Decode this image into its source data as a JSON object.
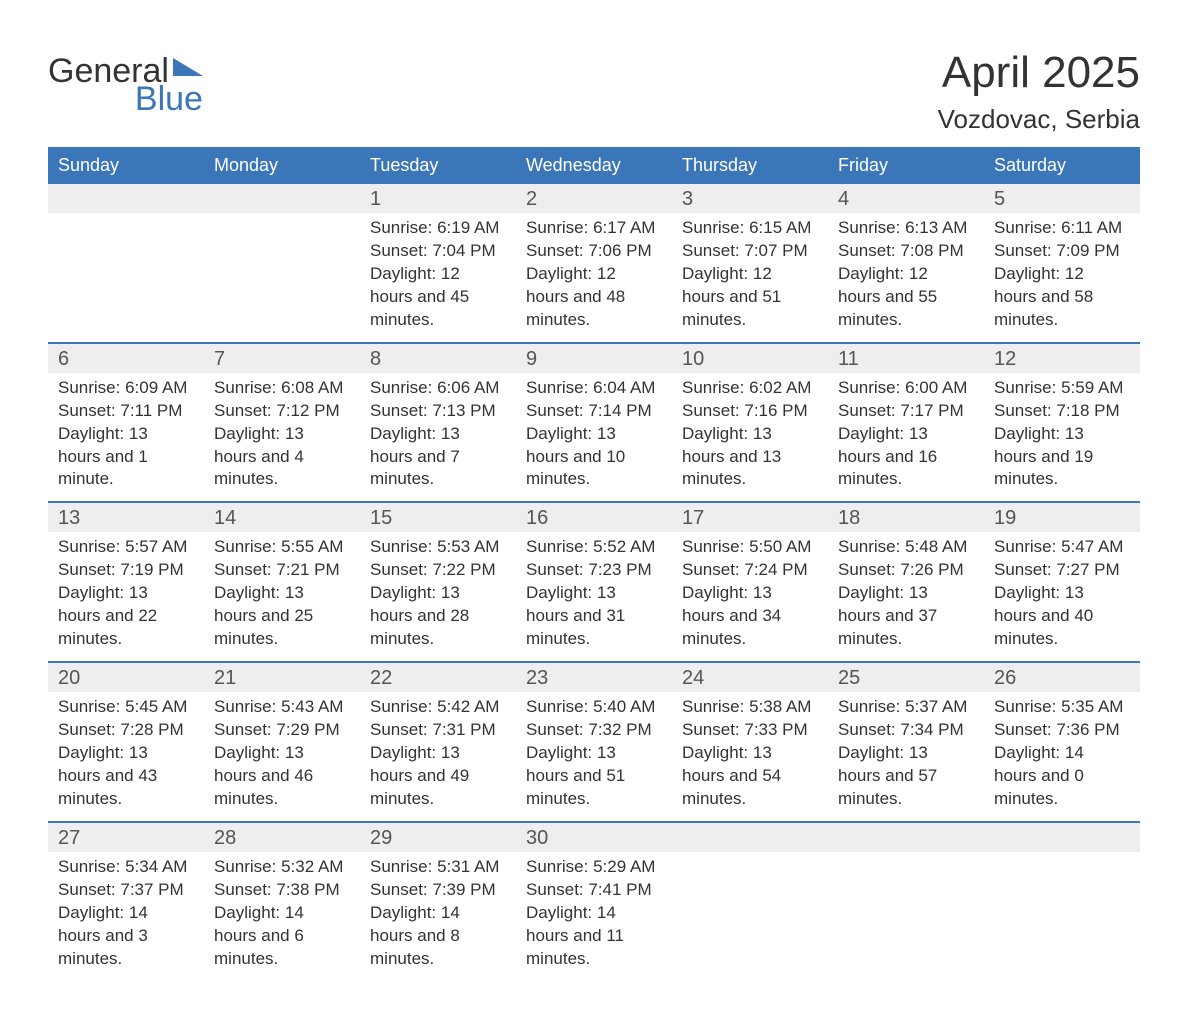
{
  "logo": {
    "word_top": "General",
    "word_bottom": "Blue",
    "text_color": "#333333",
    "accent_color": "#3a76b8",
    "triangle_color": "#3a76b8"
  },
  "title": {
    "month": "April 2025",
    "location": "Vozdovac, Serbia",
    "month_fontsize": 44,
    "location_fontsize": 26,
    "text_color": "#333333"
  },
  "calendar": {
    "header_bg": "#3a76b8",
    "header_text_color": "#ffffff",
    "daynum_bg": "#eeeeee",
    "week_divider_color": "#3a76b8",
    "body_bg": "#ffffff",
    "body_text_color": "#333333",
    "header_fontsize": 18,
    "daynum_fontsize": 20,
    "body_fontsize": 17,
    "day_names": [
      "Sunday",
      "Monday",
      "Tuesday",
      "Wednesday",
      "Thursday",
      "Friday",
      "Saturday"
    ],
    "weeks": [
      [
        null,
        null,
        {
          "n": "1",
          "sunrise": "Sunrise: 6:19 AM",
          "sunset": "Sunset: 7:04 PM",
          "daylight": "Daylight: 12 hours and 45 minutes."
        },
        {
          "n": "2",
          "sunrise": "Sunrise: 6:17 AM",
          "sunset": "Sunset: 7:06 PM",
          "daylight": "Daylight: 12 hours and 48 minutes."
        },
        {
          "n": "3",
          "sunrise": "Sunrise: 6:15 AM",
          "sunset": "Sunset: 7:07 PM",
          "daylight": "Daylight: 12 hours and 51 minutes."
        },
        {
          "n": "4",
          "sunrise": "Sunrise: 6:13 AM",
          "sunset": "Sunset: 7:08 PM",
          "daylight": "Daylight: 12 hours and 55 minutes."
        },
        {
          "n": "5",
          "sunrise": "Sunrise: 6:11 AM",
          "sunset": "Sunset: 7:09 PM",
          "daylight": "Daylight: 12 hours and 58 minutes."
        }
      ],
      [
        {
          "n": "6",
          "sunrise": "Sunrise: 6:09 AM",
          "sunset": "Sunset: 7:11 PM",
          "daylight": "Daylight: 13 hours and 1 minute."
        },
        {
          "n": "7",
          "sunrise": "Sunrise: 6:08 AM",
          "sunset": "Sunset: 7:12 PM",
          "daylight": "Daylight: 13 hours and 4 minutes."
        },
        {
          "n": "8",
          "sunrise": "Sunrise: 6:06 AM",
          "sunset": "Sunset: 7:13 PM",
          "daylight": "Daylight: 13 hours and 7 minutes."
        },
        {
          "n": "9",
          "sunrise": "Sunrise: 6:04 AM",
          "sunset": "Sunset: 7:14 PM",
          "daylight": "Daylight: 13 hours and 10 minutes."
        },
        {
          "n": "10",
          "sunrise": "Sunrise: 6:02 AM",
          "sunset": "Sunset: 7:16 PM",
          "daylight": "Daylight: 13 hours and 13 minutes."
        },
        {
          "n": "11",
          "sunrise": "Sunrise: 6:00 AM",
          "sunset": "Sunset: 7:17 PM",
          "daylight": "Daylight: 13 hours and 16 minutes."
        },
        {
          "n": "12",
          "sunrise": "Sunrise: 5:59 AM",
          "sunset": "Sunset: 7:18 PM",
          "daylight": "Daylight: 13 hours and 19 minutes."
        }
      ],
      [
        {
          "n": "13",
          "sunrise": "Sunrise: 5:57 AM",
          "sunset": "Sunset: 7:19 PM",
          "daylight": "Daylight: 13 hours and 22 minutes."
        },
        {
          "n": "14",
          "sunrise": "Sunrise: 5:55 AM",
          "sunset": "Sunset: 7:21 PM",
          "daylight": "Daylight: 13 hours and 25 minutes."
        },
        {
          "n": "15",
          "sunrise": "Sunrise: 5:53 AM",
          "sunset": "Sunset: 7:22 PM",
          "daylight": "Daylight: 13 hours and 28 minutes."
        },
        {
          "n": "16",
          "sunrise": "Sunrise: 5:52 AM",
          "sunset": "Sunset: 7:23 PM",
          "daylight": "Daylight: 13 hours and 31 minutes."
        },
        {
          "n": "17",
          "sunrise": "Sunrise: 5:50 AM",
          "sunset": "Sunset: 7:24 PM",
          "daylight": "Daylight: 13 hours and 34 minutes."
        },
        {
          "n": "18",
          "sunrise": "Sunrise: 5:48 AM",
          "sunset": "Sunset: 7:26 PM",
          "daylight": "Daylight: 13 hours and 37 minutes."
        },
        {
          "n": "19",
          "sunrise": "Sunrise: 5:47 AM",
          "sunset": "Sunset: 7:27 PM",
          "daylight": "Daylight: 13 hours and 40 minutes."
        }
      ],
      [
        {
          "n": "20",
          "sunrise": "Sunrise: 5:45 AM",
          "sunset": "Sunset: 7:28 PM",
          "daylight": "Daylight: 13 hours and 43 minutes."
        },
        {
          "n": "21",
          "sunrise": "Sunrise: 5:43 AM",
          "sunset": "Sunset: 7:29 PM",
          "daylight": "Daylight: 13 hours and 46 minutes."
        },
        {
          "n": "22",
          "sunrise": "Sunrise: 5:42 AM",
          "sunset": "Sunset: 7:31 PM",
          "daylight": "Daylight: 13 hours and 49 minutes."
        },
        {
          "n": "23",
          "sunrise": "Sunrise: 5:40 AM",
          "sunset": "Sunset: 7:32 PM",
          "daylight": "Daylight: 13 hours and 51 minutes."
        },
        {
          "n": "24",
          "sunrise": "Sunrise: 5:38 AM",
          "sunset": "Sunset: 7:33 PM",
          "daylight": "Daylight: 13 hours and 54 minutes."
        },
        {
          "n": "25",
          "sunrise": "Sunrise: 5:37 AM",
          "sunset": "Sunset: 7:34 PM",
          "daylight": "Daylight: 13 hours and 57 minutes."
        },
        {
          "n": "26",
          "sunrise": "Sunrise: 5:35 AM",
          "sunset": "Sunset: 7:36 PM",
          "daylight": "Daylight: 14 hours and 0 minutes."
        }
      ],
      [
        {
          "n": "27",
          "sunrise": "Sunrise: 5:34 AM",
          "sunset": "Sunset: 7:37 PM",
          "daylight": "Daylight: 14 hours and 3 minutes."
        },
        {
          "n": "28",
          "sunrise": "Sunrise: 5:32 AM",
          "sunset": "Sunset: 7:38 PM",
          "daylight": "Daylight: 14 hours and 6 minutes."
        },
        {
          "n": "29",
          "sunrise": "Sunrise: 5:31 AM",
          "sunset": "Sunset: 7:39 PM",
          "daylight": "Daylight: 14 hours and 8 minutes."
        },
        {
          "n": "30",
          "sunrise": "Sunrise: 5:29 AM",
          "sunset": "Sunset: 7:41 PM",
          "daylight": "Daylight: 14 hours and 11 minutes."
        },
        null,
        null,
        null
      ]
    ]
  }
}
